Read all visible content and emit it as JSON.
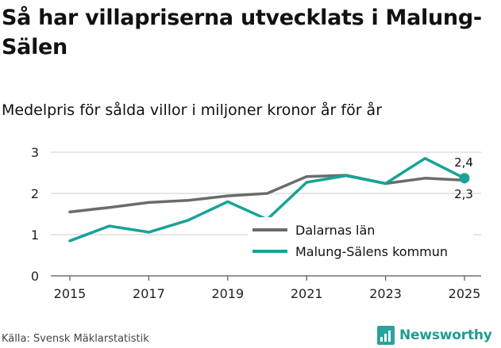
{
  "title": "Så har villapriserna utvecklats i Malung-Sälen",
  "subtitle": "Medelpris för sålda villor i miljoner kronor år för år",
  "source": "Källa: Svensk Mäklarstatistik",
  "brand": "Newsworthy",
  "colors": {
    "dalarna": "#6b6b6b",
    "malung": "#17a398",
    "grid": "#cccccc",
    "brand": "#29a39b"
  },
  "chart_data": {
    "type": "line",
    "title": "Så har villapriserna utvecklats i Malung-Sälen",
    "subtitle": "Medelpris för sålda villor i miljoner kronor år för år",
    "xlabel": "",
    "ylabel": "",
    "ylim": [
      0,
      3
    ],
    "yticks": [
      0,
      1,
      2,
      3
    ],
    "xticks": [
      2015,
      2017,
      2019,
      2021,
      2023,
      2025
    ],
    "x": [
      2015,
      2016,
      2017,
      2018,
      2019,
      2020,
      2021,
      2022,
      2023,
      2024,
      2025
    ],
    "series": [
      {
        "name": "Dalarnas län",
        "values": [
          1.55,
          1.66,
          1.78,
          1.83,
          1.94,
          2.0,
          2.41,
          2.44,
          2.24,
          2.37,
          2.32
        ]
      },
      {
        "name": "Malung-Sälens kommun",
        "values": [
          0.85,
          1.21,
          1.06,
          1.35,
          1.8,
          1.37,
          2.27,
          2.43,
          2.24,
          2.85,
          2.37
        ]
      }
    ],
    "end_labels": {
      "Malung-Sälens kommun": "2,4",
      "Dalarnas län": "2,3"
    },
    "grid": true,
    "legend": "bottom-right"
  }
}
